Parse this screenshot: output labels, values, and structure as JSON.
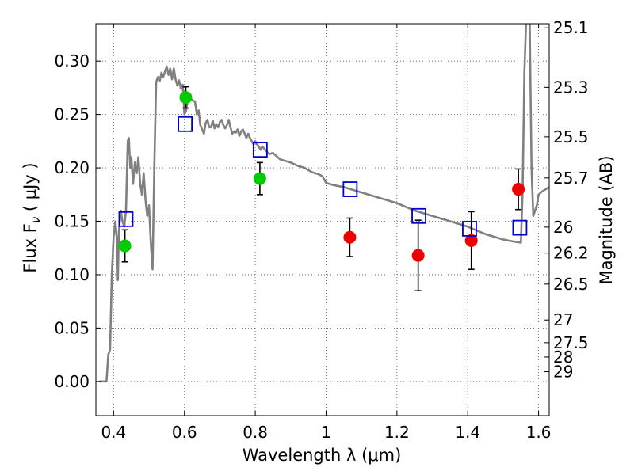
{
  "chart_data": {
    "type": "scatter",
    "xlabel": "Wavelength  λ (μm)",
    "ylabel_main": "Flux  F",
    "ylabel_sub": "ν",
    "ylabel_unit": "  ( μJy )",
    "y2label": "Magnitude (AB)",
    "xlim": [
      0.35,
      1.63
    ],
    "ylim": [
      -0.032,
      0.335
    ],
    "grid": true,
    "x_ticks": [
      {
        "v": 0.4,
        "label": "0.4"
      },
      {
        "v": 0.6,
        "label": "0.6"
      },
      {
        "v": 0.8,
        "label": "0.8"
      },
      {
        "v": 1.0,
        "label": "1"
      },
      {
        "v": 1.2,
        "label": "1.2"
      },
      {
        "v": 1.4,
        "label": "1.4"
      },
      {
        "v": 1.6,
        "label": "1.6"
      }
    ],
    "y_ticks": [
      {
        "v": 0.0,
        "label": "0.00"
      },
      {
        "v": 0.05,
        "label": "0.05"
      },
      {
        "v": 0.1,
        "label": "0.10"
      },
      {
        "v": 0.15,
        "label": "0.15"
      },
      {
        "v": 0.2,
        "label": "0.20"
      },
      {
        "v": 0.25,
        "label": "0.25"
      },
      {
        "v": 0.3,
        "label": "0.30"
      }
    ],
    "mag_ticks": [
      {
        "mag": 25.1,
        "label": "25.1"
      },
      {
        "mag": 25.3,
        "label": "25.3"
      },
      {
        "mag": 25.5,
        "label": "25.5"
      },
      {
        "mag": 25.7,
        "label": "25.7"
      },
      {
        "mag": 26.0,
        "label": "26"
      },
      {
        "mag": 26.2,
        "label": "26.2"
      },
      {
        "mag": 26.5,
        "label": "26.5"
      },
      {
        "mag": 27.0,
        "label": "27"
      },
      {
        "mag": 27.5,
        "label": "27.5"
      },
      {
        "mag": 28.0,
        "label": "28"
      },
      {
        "mag": 29.0,
        "label": "29"
      }
    ],
    "colors": {
      "model": "#808080",
      "optical": "#00cc00",
      "nir": "#ee0000",
      "synthetic": "#0000cc",
      "errorbar": "#000000",
      "grid": "#555555"
    },
    "model_sed": [
      [
        0.36,
        0.0
      ],
      [
        0.38,
        0.0
      ],
      [
        0.385,
        0.025
      ],
      [
        0.39,
        0.03
      ],
      [
        0.395,
        0.1
      ],
      [
        0.4,
        0.135
      ],
      [
        0.405,
        0.15
      ],
      [
        0.41,
        0.13
      ],
      [
        0.412,
        0.095
      ],
      [
        0.415,
        0.14
      ],
      [
        0.42,
        0.16
      ],
      [
        0.425,
        0.15
      ],
      [
        0.43,
        0.145
      ],
      [
        0.435,
        0.16
      ],
      [
        0.44,
        0.225
      ],
      [
        0.443,
        0.228
      ],
      [
        0.447,
        0.2
      ],
      [
        0.45,
        0.21
      ],
      [
        0.455,
        0.185
      ],
      [
        0.46,
        0.205
      ],
      [
        0.465,
        0.195
      ],
      [
        0.47,
        0.21
      ],
      [
        0.475,
        0.185
      ],
      [
        0.48,
        0.175
      ],
      [
        0.485,
        0.195
      ],
      [
        0.49,
        0.17
      ],
      [
        0.495,
        0.155
      ],
      [
        0.5,
        0.165
      ],
      [
        0.505,
        0.13
      ],
      [
        0.51,
        0.105
      ],
      [
        0.515,
        0.2
      ],
      [
        0.52,
        0.28
      ],
      [
        0.525,
        0.285
      ],
      [
        0.53,
        0.281
      ],
      [
        0.535,
        0.289
      ],
      [
        0.54,
        0.285
      ],
      [
        0.545,
        0.29
      ],
      [
        0.55,
        0.295
      ],
      [
        0.555,
        0.287
      ],
      [
        0.56,
        0.293
      ],
      [
        0.565,
        0.283
      ],
      [
        0.57,
        0.293
      ],
      [
        0.575,
        0.283
      ],
      [
        0.58,
        0.277
      ],
      [
        0.585,
        0.282
      ],
      [
        0.59,
        0.274
      ],
      [
        0.595,
        0.278
      ],
      [
        0.6,
        0.25
      ],
      [
        0.605,
        0.254
      ],
      [
        0.61,
        0.266
      ],
      [
        0.62,
        0.264
      ],
      [
        0.63,
        0.262
      ],
      [
        0.635,
        0.25
      ],
      [
        0.64,
        0.254
      ],
      [
        0.645,
        0.24
      ],
      [
        0.65,
        0.236
      ],
      [
        0.655,
        0.232
      ],
      [
        0.66,
        0.242
      ],
      [
        0.665,
        0.245
      ],
      [
        0.67,
        0.238
      ],
      [
        0.675,
        0.238
      ],
      [
        0.68,
        0.244
      ],
      [
        0.685,
        0.237
      ],
      [
        0.69,
        0.241
      ],
      [
        0.695,
        0.238
      ],
      [
        0.7,
        0.243
      ],
      [
        0.705,
        0.245
      ],
      [
        0.71,
        0.24
      ],
      [
        0.715,
        0.237
      ],
      [
        0.72,
        0.24
      ],
      [
        0.725,
        0.245
      ],
      [
        0.73,
        0.238
      ],
      [
        0.735,
        0.232
      ],
      [
        0.74,
        0.234
      ],
      [
        0.745,
        0.233
      ],
      [
        0.75,
        0.236
      ],
      [
        0.755,
        0.23
      ],
      [
        0.76,
        0.234
      ],
      [
        0.765,
        0.236
      ],
      [
        0.77,
        0.232
      ],
      [
        0.775,
        0.228
      ],
      [
        0.78,
        0.232
      ],
      [
        0.785,
        0.228
      ],
      [
        0.79,
        0.225
      ],
      [
        0.795,
        0.222
      ],
      [
        0.8,
        0.225
      ],
      [
        0.805,
        0.222
      ],
      [
        0.81,
        0.22
      ],
      [
        0.815,
        0.217
      ],
      [
        0.82,
        0.22
      ],
      [
        0.83,
        0.216
      ],
      [
        0.84,
        0.213
      ],
      [
        0.85,
        0.214
      ],
      [
        0.86,
        0.211
      ],
      [
        0.87,
        0.208
      ],
      [
        0.88,
        0.207
      ],
      [
        0.9,
        0.205
      ],
      [
        0.92,
        0.202
      ],
      [
        0.94,
        0.2
      ],
      [
        0.96,
        0.196
      ],
      [
        0.98,
        0.194
      ],
      [
        0.99,
        0.192
      ],
      [
        1.0,
        0.186
      ],
      [
        1.02,
        0.184
      ],
      [
        1.05,
        0.182
      ],
      [
        1.1,
        0.177
      ],
      [
        1.15,
        0.172
      ],
      [
        1.2,
        0.167
      ],
      [
        1.25,
        0.16
      ],
      [
        1.3,
        0.155
      ],
      [
        1.35,
        0.15
      ],
      [
        1.4,
        0.145
      ],
      [
        1.45,
        0.138
      ],
      [
        1.5,
        0.133
      ],
      [
        1.53,
        0.131
      ],
      [
        1.55,
        0.13
      ],
      [
        1.555,
        0.18
      ],
      [
        1.56,
        0.29
      ],
      [
        1.565,
        0.34
      ],
      [
        1.575,
        0.335
      ],
      [
        1.58,
        0.2
      ],
      [
        1.585,
        0.155
      ],
      [
        1.595,
        0.165
      ],
      [
        1.6,
        0.175
      ],
      [
        1.61,
        0.178
      ],
      [
        1.63,
        0.182
      ]
    ],
    "series": [
      {
        "marker": "circle-green",
        "points": [
          {
            "x": 0.432,
            "y": 0.127,
            "err": 0.015
          },
          {
            "x": 0.604,
            "y": 0.266,
            "err": 0.01
          },
          {
            "x": 0.813,
            "y": 0.19,
            "err": 0.015
          }
        ]
      },
      {
        "marker": "circle-red",
        "points": [
          {
            "x": 1.067,
            "y": 0.135,
            "err": 0.018
          },
          {
            "x": 1.26,
            "y": 0.118,
            "err": 0.033
          },
          {
            "x": 1.41,
            "y": 0.132,
            "err": 0.027
          },
          {
            "x": 1.543,
            "y": 0.18,
            "err": 0.019
          }
        ]
      },
      {
        "marker": "square-open-blue",
        "points": [
          {
            "x": 0.435,
            "y": 0.152
          },
          {
            "x": 0.602,
            "y": 0.241
          },
          {
            "x": 0.814,
            "y": 0.217
          },
          {
            "x": 1.068,
            "y": 0.18
          },
          {
            "x": 1.262,
            "y": 0.155
          },
          {
            "x": 1.405,
            "y": 0.143
          },
          {
            "x": 1.547,
            "y": 0.144
          }
        ]
      }
    ]
  }
}
